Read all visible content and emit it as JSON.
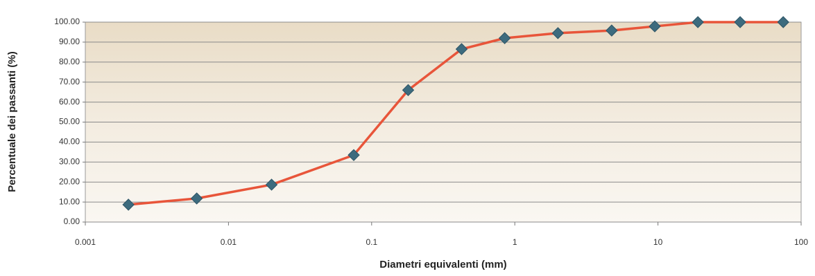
{
  "chart_data": {
    "type": "line",
    "x_label": "Diametri equivalenti (mm)",
    "y_label": "Percentuale dei passanti (%)",
    "x": [
      0.002,
      0.006,
      0.02,
      0.075,
      0.18,
      0.425,
      0.85,
      2,
      4.75,
      9.5,
      19,
      37.5,
      75
    ],
    "series": [
      {
        "color": "#e8553a",
        "marker_color": "#3d6b7e",
        "values": [
          8.7,
          11.8,
          18.7,
          33.5,
          66,
          86.5,
          92,
          94.5,
          95.8,
          97.9,
          100,
          100,
          100
        ]
      }
    ],
    "xlim": [
      0.001,
      100
    ],
    "xticks": [
      0.001,
      0.01,
      0.1,
      1,
      10,
      100
    ],
    "x_log": true,
    "ylim": [
      0,
      100
    ],
    "yticks": [
      {
        "value": 0,
        "label": "0.00"
      },
      {
        "value": 10,
        "label": "10.00"
      },
      {
        "value": 20,
        "label": "20.00"
      },
      {
        "value": 30,
        "label": "30.00"
      },
      {
        "value": 40,
        "label": "40.00"
      },
      {
        "value": 50,
        "label": "50.00"
      },
      {
        "value": 60,
        "label": "60.00"
      },
      {
        "value": 70,
        "label": "70.00"
      },
      {
        "value": 80,
        "label": "80.00"
      },
      {
        "value": 90,
        "label": "90.00"
      },
      {
        "value": 100,
        "label": "100.00"
      }
    ],
    "grid": true
  }
}
